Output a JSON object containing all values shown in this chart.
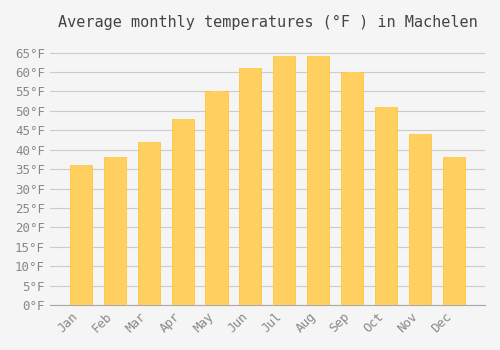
{
  "title": "Average monthly temperatures (°F ) in Machelen",
  "months": [
    "Jan",
    "Feb",
    "Mar",
    "Apr",
    "May",
    "Jun",
    "Jul",
    "Aug",
    "Sep",
    "Oct",
    "Nov",
    "Dec"
  ],
  "values": [
    36,
    38,
    42,
    48,
    55,
    61,
    64,
    64,
    60,
    51,
    44,
    38
  ],
  "bar_color_top": "#FFC020",
  "bar_color_bottom": "#FFD060",
  "ylim": [
    0,
    68
  ],
  "yticks": [
    0,
    5,
    10,
    15,
    20,
    25,
    30,
    35,
    40,
    45,
    50,
    55,
    60,
    65
  ],
  "ytick_labels": [
    "0°F",
    "5°F",
    "10°F",
    "15°F",
    "20°F",
    "25°F",
    "30°F",
    "35°F",
    "40°F",
    "45°F",
    "50°F",
    "55°F",
    "60°F",
    "65°F"
  ],
  "background_color": "#F5F5F5",
  "grid_color": "#CCCCCC",
  "font_family": "monospace",
  "title_fontsize": 11,
  "tick_fontsize": 9,
  "bar_edge_color": "#E8A000"
}
